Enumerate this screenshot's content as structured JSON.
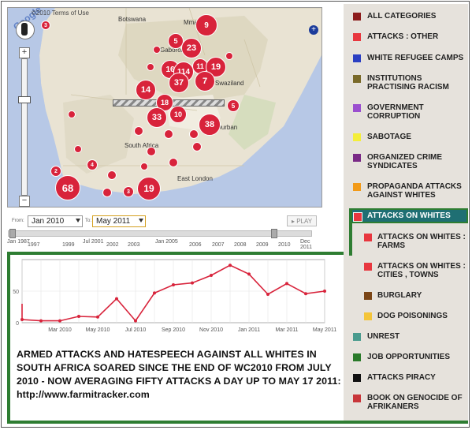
{
  "map": {
    "terms": "©2010 Terms of Use",
    "google_logo": "Google",
    "labels": [
      {
        "text": "Botswana"
      },
      {
        "text": "Mmadinare"
      },
      {
        "text": "Gaborone"
      },
      {
        "text": "Swaziland"
      },
      {
        "text": "Durban"
      },
      {
        "text": "South Africa"
      },
      {
        "text": "East London"
      }
    ],
    "markers": [
      {
        "count": "9",
        "size": "large"
      },
      {
        "count": "3",
        "size": "small"
      },
      {
        "count": "5",
        "size": "medium"
      },
      {
        "count": "23",
        "size": "large"
      },
      {
        "count": "11",
        "size": "medium"
      },
      {
        "count": "19",
        "size": "large"
      },
      {
        "count": "16",
        "size": "large"
      },
      {
        "count": "114",
        "size": "large"
      },
      {
        "count": "7",
        "size": "large"
      },
      {
        "count": "14",
        "size": "large"
      },
      {
        "count": "37",
        "size": "large"
      },
      {
        "count": "18",
        "size": "medium"
      },
      {
        "count": "33",
        "size": "large"
      },
      {
        "count": "10",
        "size": "large"
      },
      {
        "count": "38",
        "size": "large"
      },
      {
        "count": "5",
        "size": "small"
      },
      {
        "count": "4",
        "size": "small"
      },
      {
        "count": "68",
        "size": "large"
      },
      {
        "count": "19",
        "size": "large"
      },
      {
        "count": "2",
        "size": "small"
      },
      {
        "count": "3",
        "size": "small"
      }
    ]
  },
  "controls": {
    "from_label": "From:",
    "to_label": "To:",
    "from_value": "Jan 2010",
    "to_value": "May 2011",
    "play_label": "PLAY",
    "year_ticks": [
      "Jan 1987",
      "1997",
      "1999",
      "Jul 2001",
      "2002",
      "2003",
      "Jan 2005",
      "2006",
      "2007",
      "2008",
      "2009",
      "2010",
      "Dec 2011"
    ]
  },
  "chart_data": {
    "type": "line",
    "x": [
      "Jan 2010",
      "Feb 2010",
      "Mar 2010",
      "Apr 2010",
      "May 2010",
      "Jun 2010",
      "Jul 2010",
      "Aug 2010",
      "Sep 2010",
      "Oct 2010",
      "Nov 2010",
      "Dec 2010",
      "Jan 2011",
      "Feb 2011",
      "Mar 2011",
      "Apr 2011",
      "May 2011"
    ],
    "tick_labels": [
      "Mar 2010",
      "May 2010",
      "Jul 2010",
      "Sep 2010",
      "Nov 2010",
      "Jan 2011",
      "Mar 2011",
      "May 2011"
    ],
    "y_ticks": [
      "0",
      "50"
    ],
    "ylim": [
      0,
      100
    ],
    "series": [
      {
        "values": [
          5,
          3,
          3,
          10,
          9,
          38,
          3,
          47,
          60,
          63,
          75,
          91,
          77,
          45,
          62,
          46,
          50
        ]
      }
    ],
    "start_spike": 30,
    "grid": true,
    "line_color": "#d8233b"
  },
  "headline": "ARMED ATTACKS AND HATESPEECH AGAINST ALL WHITES IN SOUTH AFRICA SOARED SINCE THE END OF WC2010 FROM JULY 2010 - NOW AVERAGING FIFTY ATTACKS A DAY UP TO MAY 17 2011:  http://www.farmitracker.com",
  "legend": {
    "items": [
      {
        "label": "ALL CATEGORIES",
        "color": "#8c1c1c"
      },
      {
        "label": "ATTACKS : OTHER",
        "color": "#e8373f"
      },
      {
        "label": "WHITE REFUGEE CAMPS",
        "color": "#2b3fc2"
      },
      {
        "label": "INSTITUTIONS PRACTISING RACISM",
        "color": "#7a6a2a"
      },
      {
        "label": "GOVERNMENT CORRUPTION",
        "color": "#9b4fcf"
      },
      {
        "label": "SABOTAGE",
        "color": "#f4ee3a"
      },
      {
        "label": "ORGANIZED CRIME SYNDICATES",
        "color": "#7a2a86"
      },
      {
        "label": "PROPAGANDA ATTACKS AGAINST WHITES",
        "color": "#f29a18"
      },
      {
        "label": "ATTACKS ON WHITES",
        "color": "#e8373f"
      },
      {
        "label": "ATTACKS ON WHITES : FARMS",
        "color": "#e8373f"
      },
      {
        "label": "ATTACKS ON WHITES : CITIES , TOWNS",
        "color": "#e8373f"
      },
      {
        "label": "BURGLARY",
        "color": "#7a4516"
      },
      {
        "label": "DOG POISONINGS",
        "color": "#f4c53a"
      },
      {
        "label": "UNREST",
        "color": "#4a9b8e"
      },
      {
        "label": "JOB OPPORTUNITIES",
        "color": "#2a7a2a"
      },
      {
        "label": "ATTACKS PIRACY",
        "color": "#111111"
      },
      {
        "label": "BOOK ON GENOCIDE OF AFRIKANERS",
        "color": "#c8363a"
      }
    ]
  }
}
